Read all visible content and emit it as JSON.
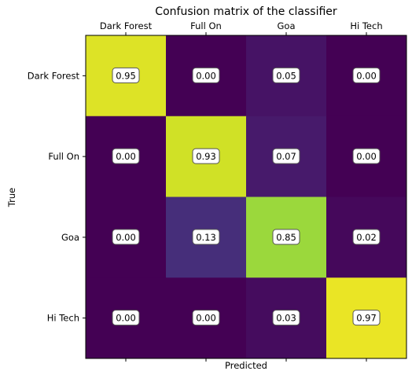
{
  "chart_data": {
    "type": "heatmap",
    "title": "Confusion matrix of the classifier",
    "xlabel": "Predicted",
    "ylabel": "True",
    "x_categories": [
      "Dark Forest",
      "Full On",
      "Goa",
      "Hi Tech"
    ],
    "y_categories": [
      "Dark Forest",
      "Full On",
      "Goa",
      "Hi Tech"
    ],
    "x_tick_position": "top",
    "xlabel_position": "bottom",
    "colormap": "viridis",
    "value_range": [
      0,
      1
    ],
    "grid": false,
    "matrix": [
      [
        0.95,
        0.0,
        0.05,
        0.0
      ],
      [
        0.0,
        0.93,
        0.07,
        0.0
      ],
      [
        0.0,
        0.13,
        0.85,
        0.02
      ],
      [
        0.0,
        0.0,
        0.03,
        0.97
      ]
    ],
    "cell_labels": [
      [
        "0.95",
        "0.00",
        "0.05",
        "0.00"
      ],
      [
        "0.00",
        "0.93",
        "0.07",
        "0.00"
      ],
      [
        "0.00",
        "0.13",
        "0.85",
        "0.02"
      ],
      [
        "0.00",
        "0.00",
        "0.03",
        "0.97"
      ]
    ]
  }
}
